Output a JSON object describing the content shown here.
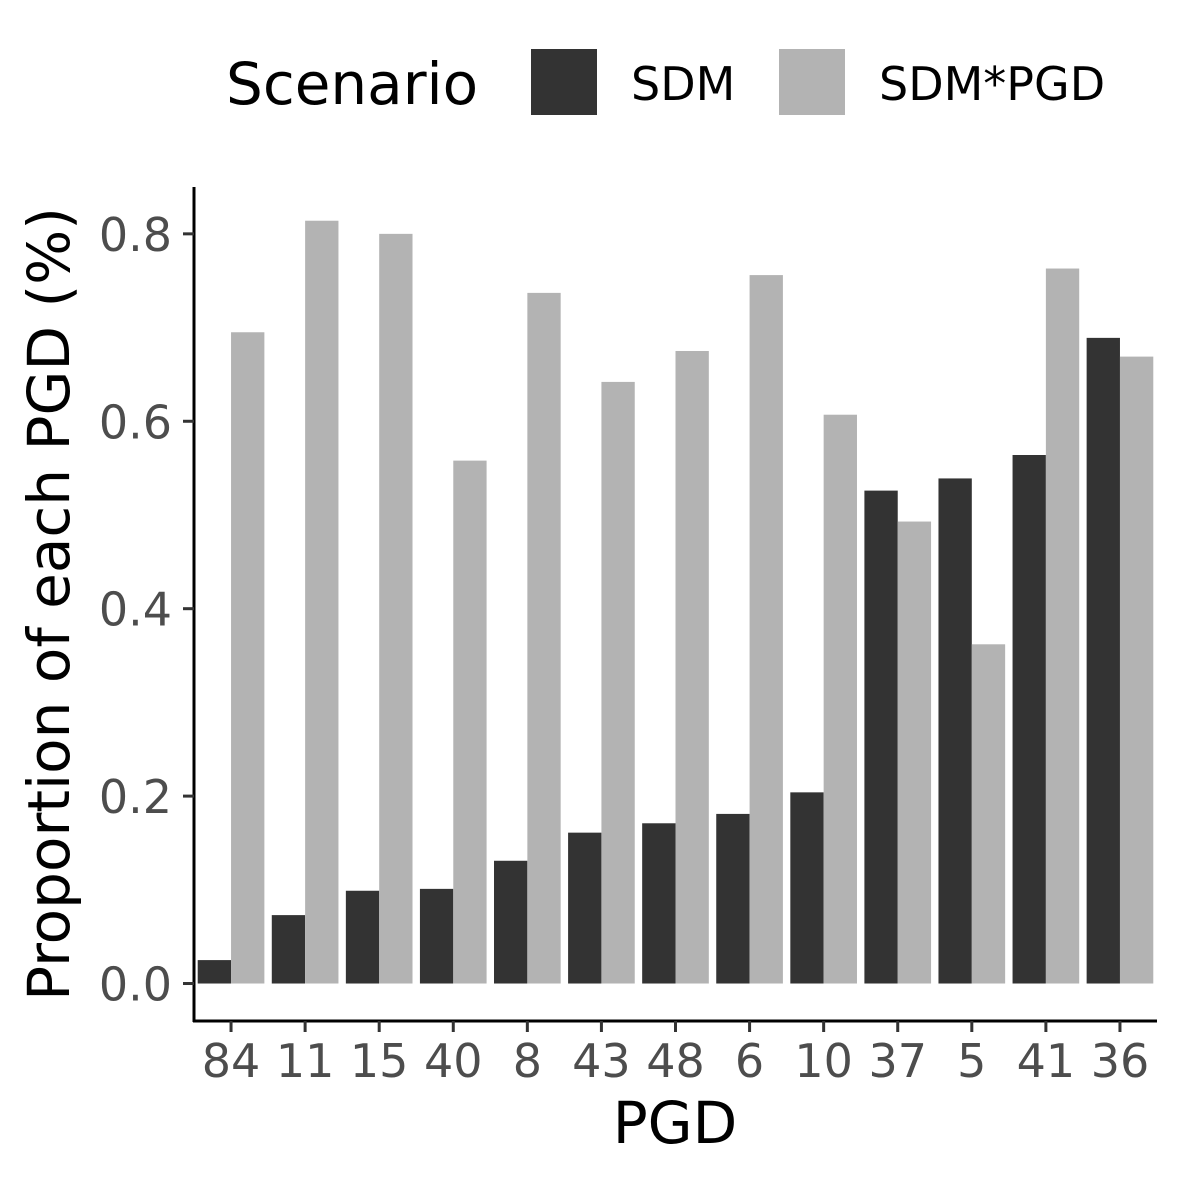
{
  "chart_data": {
    "type": "bar",
    "xlabel": "PGD",
    "ylabel": "Proportion of each PGD (%)",
    "legend": {
      "title": "Scenario",
      "placement": "top"
    },
    "categories": [
      "84",
      "11",
      "15",
      "40",
      "8",
      "43",
      "48",
      "6",
      "10",
      "37",
      "5",
      "41",
      "36"
    ],
    "series": [
      {
        "name": "SDM",
        "color": "#333333",
        "values": [
          0.025,
          0.073,
          0.099,
          0.101,
          0.131,
          0.161,
          0.171,
          0.181,
          0.204,
          0.526,
          0.539,
          0.564,
          0.689
        ]
      },
      {
        "name": "SDM*PGD",
        "color": "#b3b3b3",
        "values": [
          0.695,
          0.814,
          0.8,
          0.558,
          0.737,
          0.642,
          0.675,
          0.756,
          0.607,
          0.493,
          0.362,
          0.763,
          0.669
        ]
      }
    ],
    "ylim": [
      -0.04,
      0.85
    ],
    "yticks": [
      {
        "value": 0.0,
        "label": "0.0"
      },
      {
        "value": 0.2,
        "label": "0.2"
      },
      {
        "value": 0.4,
        "label": "0.4"
      },
      {
        "value": 0.6,
        "label": "0.6"
      },
      {
        "value": 0.8,
        "label": "0.8"
      }
    ],
    "grid": false
  }
}
